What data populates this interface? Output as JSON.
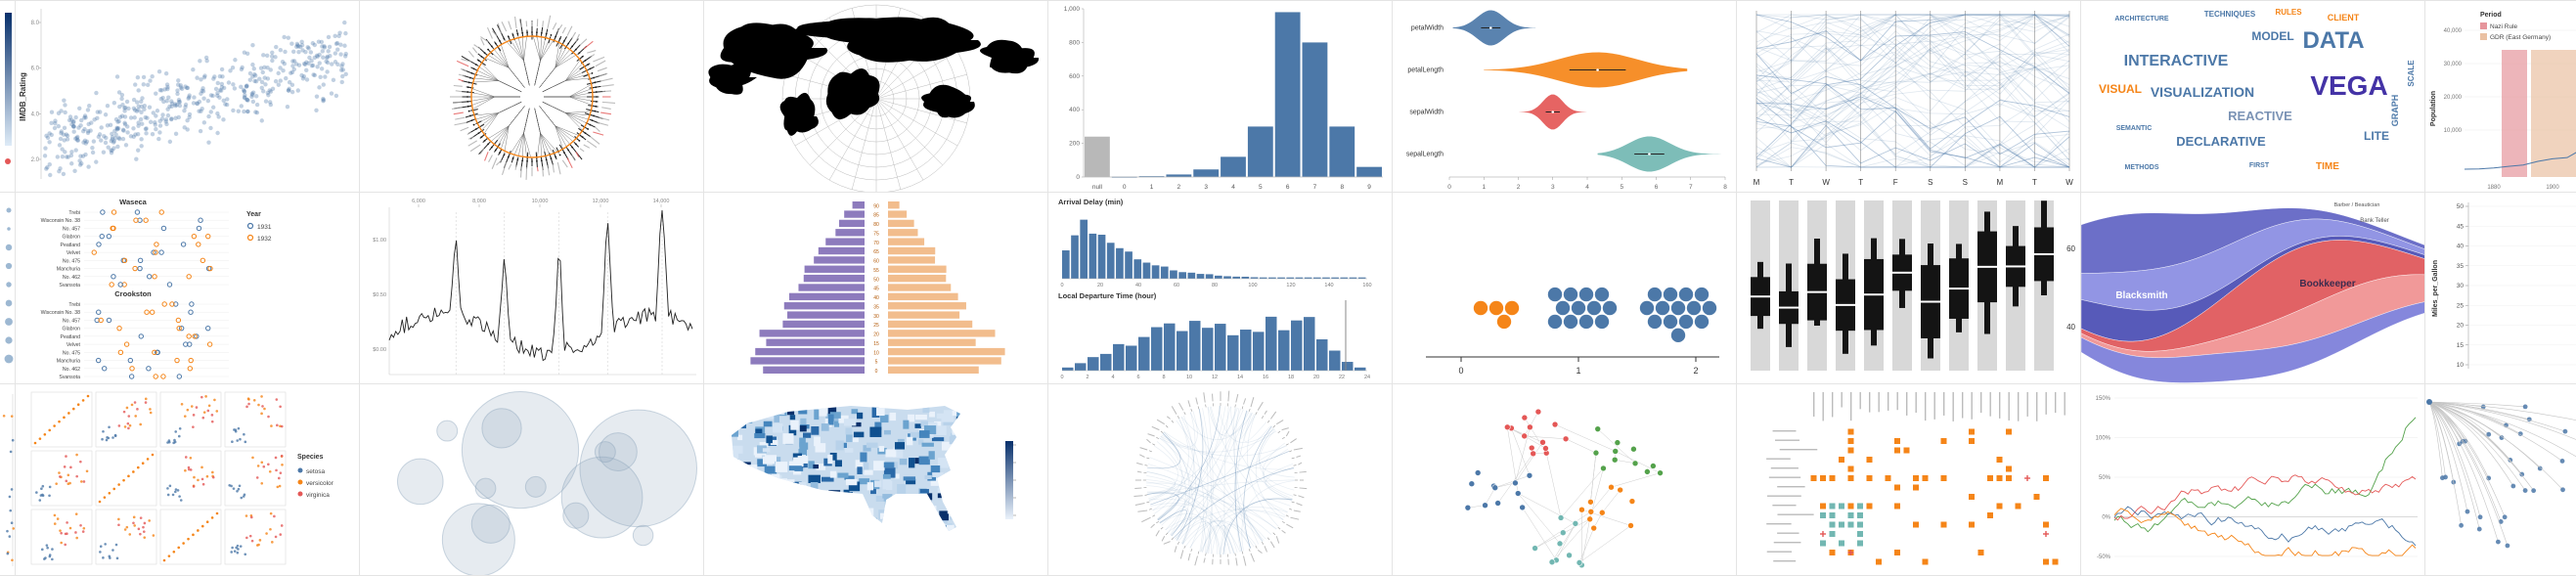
{
  "palette": {
    "blue": "#4c78a8",
    "orange": "#f58518",
    "red": "#e45756",
    "teal": "#72b7b2",
    "green": "#54a24b",
    "purple": "#b279a2",
    "violet": "#4433a6",
    "steel": "#7b93b5",
    "gray": "#b8b8b8"
  },
  "chart_data": [
    {
      "id": "colorbar-fragment",
      "row": 0,
      "col": 0,
      "type": "sliver_colorbar"
    },
    {
      "id": "dots-fragment",
      "row": 1,
      "col": 0,
      "type": "sliver_dots"
    },
    {
      "id": "scatter-fragment",
      "row": 2,
      "col": 0,
      "type": "sliver_scatter"
    },
    {
      "id": "imdb-scatterplot",
      "row": 0,
      "col": 1,
      "type": "scatter",
      "ylabel": "IMDB_Rating",
      "y_ticks": [
        "8.0",
        "6.0",
        "4.0",
        "2.0"
      ],
      "point_color": "blue",
      "n_points": 520
    },
    {
      "id": "radial-dendrogram",
      "row": 0,
      "col": 2,
      "type": "radial_tree",
      "ring_color": "orange",
      "n_leaves": 84
    },
    {
      "id": "world-map-projection",
      "row": 0,
      "col": 3,
      "type": "world_map",
      "land_color": "#000000"
    },
    {
      "id": "histogram-null-values",
      "row": 0,
      "col": 4,
      "type": "histogram",
      "y_ticks": [
        "1,000",
        "800",
        "600",
        "400",
        "200",
        "0"
      ],
      "categories": [
        "null",
        "0",
        "1",
        "2",
        "3",
        "4",
        "5",
        "6",
        "7",
        "8",
        "9"
      ],
      "values": [
        240,
        2,
        5,
        15,
        45,
        120,
        300,
        980,
        800,
        300,
        60
      ],
      "ylim": [
        0,
        1000
      ],
      "null_color": "gray",
      "bar_color": "blue"
    },
    {
      "id": "violin-plots",
      "row": 0,
      "col": 5,
      "type": "violin",
      "rows": [
        {
          "label": "petalWidth",
          "color": "blue",
          "min": 0.1,
          "max": 2.5,
          "mode": 1.2,
          "spread": 0.55
        },
        {
          "label": "petalLength",
          "color": "orange",
          "min": 1.0,
          "max": 6.9,
          "mode": 4.3,
          "spread": 1.6
        },
        {
          "label": "sepalWidth",
          "color": "red",
          "min": 2.0,
          "max": 4.4,
          "mode": 3.0,
          "spread": 0.4
        },
        {
          "label": "sepalLength",
          "color": "teal",
          "min": 4.3,
          "max": 7.9,
          "mode": 5.8,
          "spread": 0.85
        }
      ],
      "x_ticks": [
        "0",
        "1",
        "2",
        "3",
        "4",
        "5",
        "6",
        "7",
        "8"
      ],
      "xlim": [
        0,
        8
      ]
    },
    {
      "id": "parallel-coordinates",
      "row": 0,
      "col": 6,
      "type": "parallel",
      "axis_labels": [
        "M",
        "T",
        "W",
        "T",
        "F",
        "S",
        "S",
        "M",
        "T",
        "W"
      ],
      "line_color": "blue",
      "n_lines": 64
    },
    {
      "id": "word-cloud",
      "row": 0,
      "col": 7,
      "type": "wordcloud",
      "words": [
        {
          "text": "ARCHITECTURE",
          "size": 7,
          "color": "blue"
        },
        {
          "text": "TECHNIQUES",
          "size": 8,
          "color": "blue"
        },
        {
          "text": "RULES",
          "size": 8,
          "color": "orange"
        },
        {
          "text": "CLIENT",
          "size": 9,
          "color": "orange"
        },
        {
          "text": "MODEL",
          "size": 12,
          "color": "blue"
        },
        {
          "text": "DATA",
          "size": 24,
          "color": "blue"
        },
        {
          "text": "VEGA",
          "size": 28,
          "color": "violet"
        },
        {
          "text": "INTERACTIVE",
          "size": 16,
          "color": "blue"
        },
        {
          "text": "VISUAL",
          "size": 12,
          "color": "orange"
        },
        {
          "text": "VISUALIZATION",
          "size": 14,
          "color": "blue"
        },
        {
          "text": "REACTIVE",
          "size": 13,
          "color": "steel"
        },
        {
          "text": "DECLARATIVE",
          "size": 13,
          "color": "blue"
        },
        {
          "text": "LITE",
          "size": 12,
          "color": "blue"
        },
        {
          "text": "GRAPH",
          "size": 9,
          "color": "blue"
        },
        {
          "text": "SCALE",
          "size": 8,
          "color": "blue"
        },
        {
          "text": "SEMANTIC",
          "size": 7,
          "color": "blue"
        },
        {
          "text": "METHODS",
          "size": 7,
          "color": "blue"
        },
        {
          "text": "TIME",
          "size": 10,
          "color": "orange"
        },
        {
          "text": "FIRST",
          "size": 7,
          "color": "blue"
        }
      ]
    },
    {
      "id": "falkensee-population",
      "row": 0,
      "col": 8,
      "type": "annotated_area_line",
      "ylabel": "Population",
      "y_ticks": [
        "40,000",
        "30,000",
        "20,000",
        "10,000"
      ],
      "x_ticks": [
        "1880",
        "1900"
      ],
      "legend": {
        "title": "Period",
        "items": [
          {
            "label": "Nazi Rule",
            "color": "#e6959c"
          },
          {
            "label": "GDR (East Germany)",
            "color": "#eac1a3"
          }
        ]
      }
    },
    {
      "id": "barley-trellis",
      "row": 1,
      "col": 1,
      "type": "barley",
      "sites": [
        "Waseca",
        "Crookston"
      ],
      "varieties": [
        "Trebi",
        "Wisconsin No. 38",
        "No. 457",
        "Glabron",
        "Peatland",
        "Velvet",
        "No. 475",
        "Manchuria",
        "No. 462",
        "Svansota"
      ],
      "legend": {
        "title": "Year",
        "items": [
          {
            "label": "1931",
            "color": "blue"
          },
          {
            "label": "1932",
            "color": "orange"
          }
        ]
      }
    },
    {
      "id": "annotated-time-series",
      "row": 1,
      "col": 2,
      "type": "spiky_line",
      "x_ticks_top": [
        "6,000",
        "8,000",
        "10,000",
        "12,000",
        "14,000"
      ],
      "y_ticks": [
        "$1.00",
        "$0.50",
        "$0.00"
      ],
      "line_color": "#222222"
    },
    {
      "id": "population-pyramid",
      "row": 1,
      "col": 3,
      "type": "pyramid",
      "age_labels": [
        "90",
        "85",
        "80",
        "75",
        "70",
        "65",
        "60",
        "55",
        "50",
        "45",
        "40",
        "35",
        "30",
        "25",
        "20",
        "15",
        "10",
        "5",
        "0"
      ],
      "left_color": "#8d7bbd",
      "right_color": "#f2bd8d"
    },
    {
      "id": "crossfilter-flights",
      "row": 1,
      "col": 4,
      "type": "crossfilter",
      "bar_color": "blue",
      "panels": [
        {
          "title": "Arrival Delay (min)",
          "x_ticks": [
            "0",
            "20",
            "40",
            "60",
            "80",
            "100",
            "120",
            "140",
            "160"
          ],
          "shape": "decay"
        },
        {
          "title": "Local Departure Time (hour)",
          "x_ticks": [
            "0",
            "2",
            "4",
            "6",
            "8",
            "10",
            "12",
            "14",
            "16",
            "18",
            "20",
            "22",
            "24"
          ],
          "shape": "plateau"
        }
      ]
    },
    {
      "id": "dot-plot-clusters",
      "row": 1,
      "col": 5,
      "type": "dot_clusters",
      "x_ticks": [
        "0",
        "1",
        "2"
      ],
      "clusters": [
        {
          "x": 0.3,
          "count": 4,
          "color": "orange"
        },
        {
          "x": 1.0,
          "count": 12,
          "color": "blue"
        },
        {
          "x": 1.85,
          "count": 14,
          "color": "blue"
        }
      ]
    },
    {
      "id": "box-range-bars",
      "row": 1,
      "col": 6,
      "type": "range_bars",
      "y_ticks": [
        "60",
        "40"
      ],
      "n_bars": 11,
      "bg_color": "#d8d8d8",
      "box_color": "#141414"
    },
    {
      "id": "job-voyager-stream",
      "row": 1,
      "col": 7,
      "type": "streamgraph",
      "layer_colors": [
        "#6467c5",
        "#8c8fe3",
        "#4e51b5",
        "#df5a5d",
        "#f09393",
        "#7e81da"
      ],
      "labels": [
        {
          "text": "Blacksmith",
          "color": "#ffffff"
        },
        {
          "text": "Bookkeeper",
          "color": "#3d2c4e"
        },
        {
          "text": "Bank Teller",
          "color": "#555555"
        },
        {
          "text": "Barber / Beautician",
          "color": "#555555"
        }
      ]
    },
    {
      "id": "mpg-axis-fragment",
      "row": 1,
      "col": 8,
      "type": "axis_fragment",
      "ylabel": "Miles_per_Gallon",
      "y_ticks": [
        "50",
        "45",
        "40",
        "35",
        "30",
        "25",
        "20",
        "15",
        "10"
      ]
    },
    {
      "id": "iris-splom",
      "row": 2,
      "col": 1,
      "type": "splom",
      "grid": [
        4,
        3
      ],
      "legend": {
        "title": "Species",
        "items": [
          {
            "label": "setosa",
            "color": "blue"
          },
          {
            "label": "versicolor",
            "color": "orange"
          },
          {
            "label": "virginica",
            "color": "red"
          }
        ]
      }
    },
    {
      "id": "zoomable-circles",
      "row": 2,
      "col": 2,
      "type": "bubbles",
      "fill": "#8fa6bc",
      "n": 14
    },
    {
      "id": "us-county-choropleth",
      "row": 2,
      "col": 3,
      "type": "us_choropleth",
      "color_low": "#eaf2fb",
      "color_high": "#08306b"
    },
    {
      "id": "edge-bundling",
      "row": 2,
      "col": 4,
      "type": "edge_bundle",
      "link_color": "blue",
      "n_nodes": 64,
      "n_links": 90
    },
    {
      "id": "force-directed-graph",
      "row": 2,
      "col": 5,
      "type": "force",
      "node_colors": [
        "red",
        "green",
        "blue",
        "orange",
        "teal"
      ],
      "n_nodes": 55
    },
    {
      "id": "adjacency-matrix",
      "row": 2,
      "col": 6,
      "type": "dot_matrix",
      "primary_color": "orange",
      "secondary_color": "teal",
      "accent_color": "red"
    },
    {
      "id": "stocks-percent-change",
      "row": 2,
      "col": 7,
      "type": "multiline",
      "y_ticks": [
        "150%",
        "100%",
        "50%",
        "0%",
        "-50%"
      ],
      "line_colors": [
        "green",
        "red",
        "blue",
        "orange"
      ]
    },
    {
      "id": "tree-layout-fragment",
      "row": 2,
      "col": 8,
      "type": "tree_fragment",
      "node_color": "blue",
      "link_color": "#c4c4c4"
    }
  ]
}
